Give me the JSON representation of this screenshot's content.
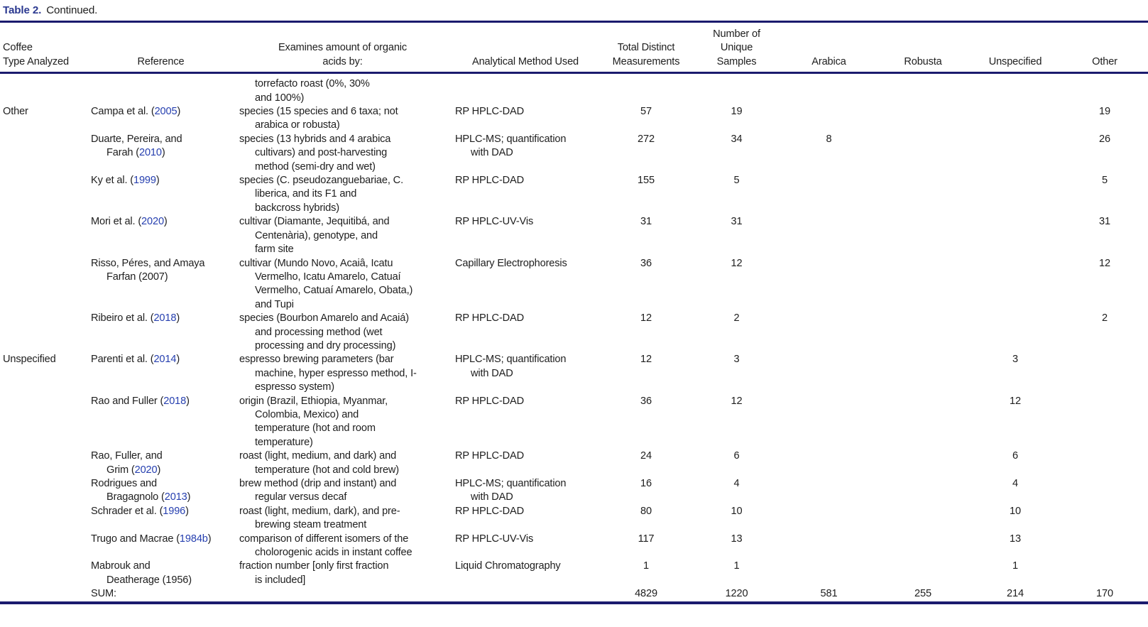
{
  "page": {
    "title_label": "Table 2.",
    "title_text": "Continued."
  },
  "colors": {
    "title_blue": "#2b3990",
    "citation_link_blue": "#2740b0",
    "rule_navy": "#1b1b6e",
    "body_text": "#202020"
  },
  "table": {
    "headers": [
      {
        "id": "coffee_type",
        "lines": [
          "Coffee",
          "Type Analyzed"
        ],
        "align": "left"
      },
      {
        "id": "reference",
        "lines": [
          "Reference"
        ],
        "align": "center"
      },
      {
        "id": "examines",
        "lines": [
          "Examines amount of organic",
          "acids by:"
        ],
        "align": "center"
      },
      {
        "id": "method",
        "lines": [
          "Analytical Method Used"
        ],
        "align": "center"
      },
      {
        "id": "total",
        "lines": [
          "Total Distinct",
          "Measurements"
        ],
        "align": "center"
      },
      {
        "id": "samples",
        "lines": [
          "Number of",
          "Unique",
          "Samples"
        ],
        "align": "center"
      },
      {
        "id": "arabica",
        "lines": [
          "Arabica"
        ],
        "align": "center"
      },
      {
        "id": "robusta",
        "lines": [
          "Robusta"
        ],
        "align": "center"
      },
      {
        "id": "unspecified",
        "lines": [
          "Unspecified"
        ],
        "align": "center"
      },
      {
        "id": "other",
        "lines": [
          "Other"
        ],
        "align": "center"
      }
    ],
    "rows": [
      {
        "coffee_type": "",
        "reference": [],
        "year_link": null,
        "examines": [
          "torrefacto roast (0%, 30%",
          "and 100%)"
        ],
        "examines_indent_all": true,
        "method": [],
        "total": "",
        "samples": "",
        "arabica": "",
        "robusta": "",
        "unspecified": "",
        "other": ""
      },
      {
        "coffee_type": "Other",
        "reference": [
          "Campa et al. (2005)"
        ],
        "year_link": "2005",
        "examines": [
          "species (15 species and 6 taxa; not",
          "arabica or robusta)"
        ],
        "method": [
          "RP HPLC-DAD"
        ],
        "total": "57",
        "samples": "19",
        "arabica": "",
        "robusta": "",
        "unspecified": "",
        "other": "19"
      },
      {
        "coffee_type": "",
        "reference": [
          "Duarte, Pereira, and",
          "Farah (2010)"
        ],
        "year_link": "2010",
        "examines": [
          "species (13 hybrids and 4 arabica",
          "cultivars) and post-harvesting",
          "method (semi-dry and wet)"
        ],
        "method": [
          "HPLC-MS; quantification",
          "with DAD"
        ],
        "total": "272",
        "samples": "34",
        "arabica": "8",
        "robusta": "",
        "unspecified": "",
        "other": "26"
      },
      {
        "coffee_type": "",
        "reference": [
          "Ky et al. (1999)"
        ],
        "year_link": "1999",
        "examines": [
          "species (C. pseudozanguebariae, C.",
          "liberica, and its F1 and",
          "backcross hybrids)"
        ],
        "method": [
          "RP HPLC-DAD"
        ],
        "total": "155",
        "samples": "5",
        "arabica": "",
        "robusta": "",
        "unspecified": "",
        "other": "5"
      },
      {
        "coffee_type": "",
        "reference": [
          "Mori et al. (2020)"
        ],
        "year_link": "2020",
        "examines": [
          "cultivar (Diamante, Jequitibá, and",
          "Centenària), genotype, and",
          "farm site"
        ],
        "method": [
          "RP HPLC-UV-Vis"
        ],
        "total": "31",
        "samples": "31",
        "arabica": "",
        "robusta": "",
        "unspecified": "",
        "other": "31"
      },
      {
        "coffee_type": "",
        "reference": [
          "Risso, Péres, and Amaya",
          "Farfan (2007)"
        ],
        "year_link": null,
        "examines": [
          "cultivar (Mundo Novo, Acaiâ, Icatu",
          "Vermelho, Icatu Amarelo, Catuaí",
          "Vermelho, Catuaí Amarelo, Obata,)",
          "and Tupi"
        ],
        "method": [
          "Capillary Electrophoresis"
        ],
        "total": "36",
        "samples": "12",
        "arabica": "",
        "robusta": "",
        "unspecified": "",
        "other": "12"
      },
      {
        "coffee_type": "",
        "reference": [
          "Ribeiro et al. (2018)"
        ],
        "year_link": "2018",
        "examines": [
          "species (Bourbon Amarelo and Acaiá)",
          "and processing method (wet",
          "processing and dry processing)"
        ],
        "method": [
          "RP HPLC-DAD"
        ],
        "total": "12",
        "samples": "2",
        "arabica": "",
        "robusta": "",
        "unspecified": "",
        "other": "2"
      },
      {
        "coffee_type": "Unspecified",
        "reference": [
          "Parenti et al. (2014)"
        ],
        "year_link": "2014",
        "examines": [
          "espresso brewing parameters (bar",
          "machine, hyper espresso method, I-",
          "espresso system)"
        ],
        "method": [
          "HPLC-MS; quantification",
          "with DAD"
        ],
        "total": "12",
        "samples": "3",
        "arabica": "",
        "robusta": "",
        "unspecified": "3",
        "other": ""
      },
      {
        "coffee_type": "",
        "reference": [
          "Rao and Fuller (2018)"
        ],
        "year_link": "2018",
        "examines": [
          "origin (Brazil, Ethiopia, Myanmar,",
          "Colombia, Mexico) and",
          "temperature (hot and room",
          "temperature)"
        ],
        "method": [
          "RP HPLC-DAD"
        ],
        "total": "36",
        "samples": "12",
        "arabica": "",
        "robusta": "",
        "unspecified": "12",
        "other": ""
      },
      {
        "coffee_type": "",
        "reference": [
          "Rao, Fuller, and",
          "Grim (2020)"
        ],
        "year_link": "2020",
        "examines": [
          "roast (light, medium, and dark) and",
          "temperature (hot and cold brew)"
        ],
        "method": [
          "RP HPLC-DAD"
        ],
        "total": "24",
        "samples": "6",
        "arabica": "",
        "robusta": "",
        "unspecified": "6",
        "other": ""
      },
      {
        "coffee_type": "",
        "reference": [
          "Rodrigues and",
          "Bragagnolo (2013)"
        ],
        "year_link": "2013",
        "examines": [
          "brew method (drip and instant) and",
          "regular versus decaf"
        ],
        "method": [
          "HPLC-MS; quantification",
          "with DAD"
        ],
        "total": "16",
        "samples": "4",
        "arabica": "",
        "robusta": "",
        "unspecified": "4",
        "other": ""
      },
      {
        "coffee_type": "",
        "reference": [
          "Schrader et al. (1996)"
        ],
        "year_link": "1996",
        "examines": [
          "roast (light, medium, dark), and pre-",
          "brewing steam treatment"
        ],
        "method": [
          "RP HPLC-DAD"
        ],
        "total": "80",
        "samples": "10",
        "arabica": "",
        "robusta": "",
        "unspecified": "10",
        "other": ""
      },
      {
        "coffee_type": "",
        "reference": [
          "Trugo and Macrae (1984b)"
        ],
        "year_link": "1984b",
        "examines": [
          "comparison of different isomers of the",
          "cholorogenic acids in instant coffee"
        ],
        "method": [
          "RP HPLC-UV-Vis"
        ],
        "total": "117",
        "samples": "13",
        "arabica": "",
        "robusta": "",
        "unspecified": "13",
        "other": ""
      },
      {
        "coffee_type": "",
        "reference": [
          "Mabrouk and",
          "Deatherage (1956)"
        ],
        "year_link": null,
        "examines": [
          "fraction number [only first fraction",
          "is included]"
        ],
        "method": [
          "Liquid Chromatography"
        ],
        "total": "1",
        "samples": "1",
        "arabica": "",
        "robusta": "",
        "unspecified": "1",
        "other": ""
      }
    ],
    "sum_row": {
      "label": "SUM:",
      "total": "4829",
      "samples": "1220",
      "arabica": "581",
      "robusta": "255",
      "unspecified": "214",
      "other": "170"
    }
  }
}
